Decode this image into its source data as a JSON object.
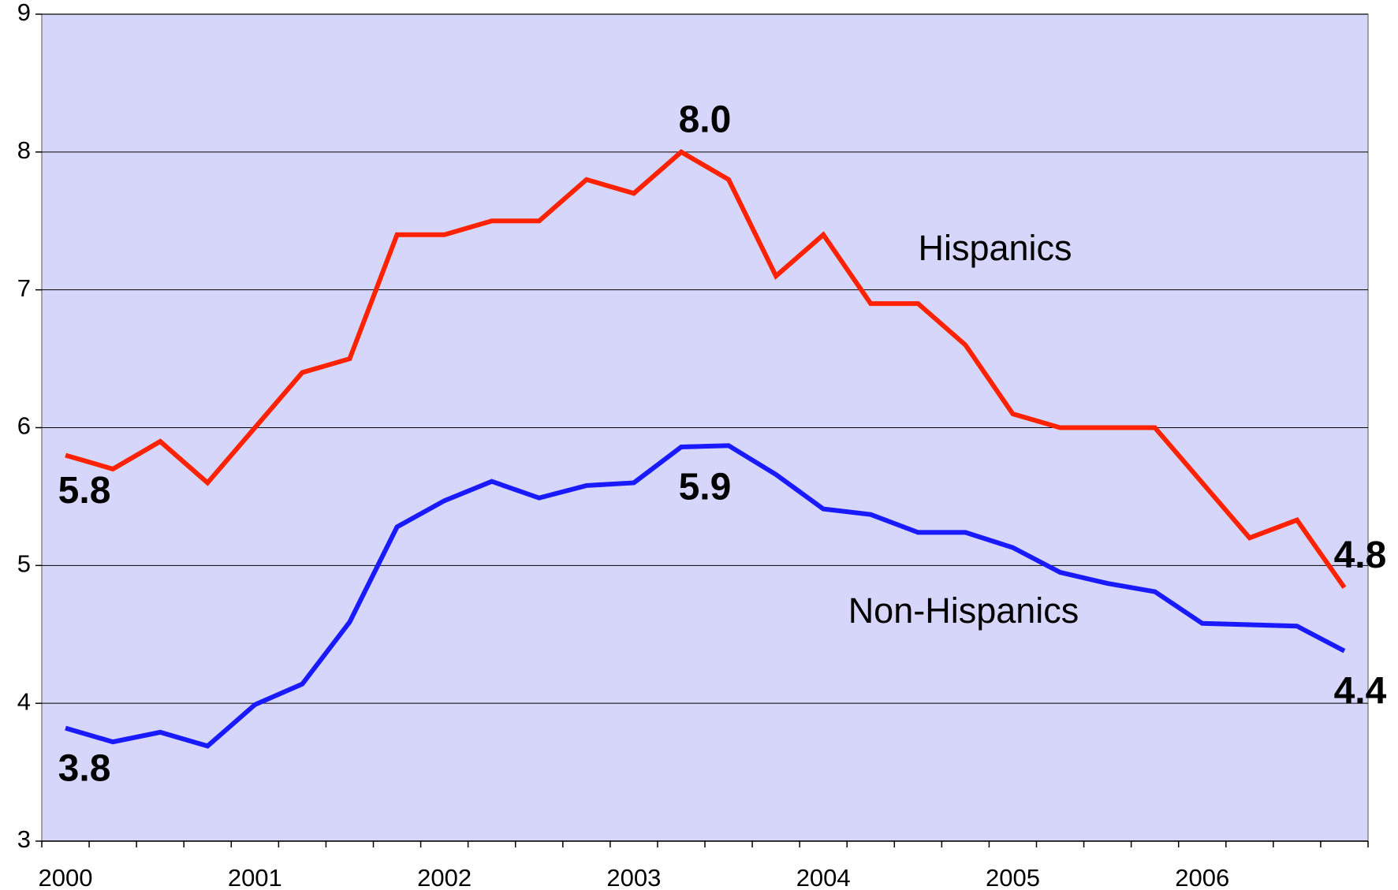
{
  "chart_data": {
    "type": "line",
    "categories": [
      "2000",
      null,
      null,
      null,
      "2001",
      null,
      null,
      null,
      "2002",
      null,
      null,
      null,
      "2003",
      null,
      null,
      null,
      "2004",
      null,
      null,
      null,
      "2005",
      null,
      null,
      null,
      "2006",
      null,
      null,
      null
    ],
    "series": [
      {
        "name": "Hispanics",
        "color": "#ff2200",
        "values": [
          5.8,
          5.7,
          5.9,
          5.6,
          6.0,
          6.4,
          6.5,
          7.4,
          7.4,
          7.5,
          7.5,
          7.8,
          7.7,
          8.0,
          7.8,
          7.1,
          7.4,
          6.9,
          6.9,
          6.6,
          6.1,
          6.0,
          6.0,
          6.0,
          5.6,
          5.2,
          5.33,
          4.84
        ],
        "value_labels": [
          "5.8",
          null,
          null,
          null,
          null,
          null,
          null,
          null,
          null,
          null,
          null,
          null,
          null,
          "8.0",
          null,
          null,
          null,
          null,
          null,
          null,
          null,
          null,
          null,
          null,
          null,
          null,
          null,
          "4.8"
        ]
      },
      {
        "name": "Non-Hispanics",
        "color": "#1a1aff",
        "values": [
          3.82,
          3.72,
          3.79,
          3.69,
          3.99,
          4.14,
          4.59,
          5.28,
          5.47,
          5.61,
          5.49,
          5.58,
          5.6,
          5.86,
          5.87,
          5.66,
          5.41,
          5.37,
          5.24,
          5.24,
          5.13,
          4.95,
          4.87,
          4.81,
          4.58,
          4.57,
          4.56,
          4.38
        ],
        "value_labels": [
          "3.8",
          null,
          null,
          null,
          null,
          null,
          null,
          null,
          null,
          null,
          null,
          null,
          null,
          "5.9",
          null,
          null,
          null,
          null,
          null,
          null,
          null,
          null,
          null,
          null,
          null,
          null,
          null,
          "4.4"
        ]
      }
    ],
    "ylim": [
      3,
      9
    ],
    "yticks": [
      3,
      4,
      5,
      6,
      7,
      8,
      9
    ],
    "grid": true
  }
}
